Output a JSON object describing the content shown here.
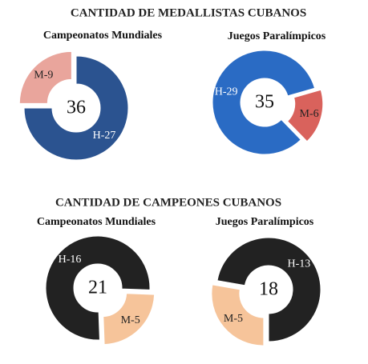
{
  "headings": [
    "CANTIDAD DE MEDALLISTAS CUBANOS",
    "CANTIDAD DE CAMPEONES CUBANOS"
  ],
  "chart_data": [
    {
      "type": "donut",
      "title": "Campeonatos Mundiales",
      "total": 36,
      "values": [
        27,
        9
      ],
      "value_labels": [
        "H-27",
        "M-9"
      ],
      "colors": [
        "#2b5390",
        "#e9a59c"
      ],
      "exploded": [
        false,
        true
      ]
    },
    {
      "type": "donut",
      "title": "Juegos Paralímpicos",
      "total": 35,
      "values": [
        29,
        6
      ],
      "value_labels": [
        "H-29",
        "M-6"
      ],
      "colors": [
        "#2a6bc4",
        "#d9625c"
      ],
      "exploded": [
        false,
        true
      ]
    },
    {
      "type": "donut",
      "title": "Campeonatos Mundiales",
      "total": 21,
      "values": [
        16,
        5
      ],
      "value_labels": [
        "H-16",
        "M-5"
      ],
      "colors": [
        "#222222",
        "#f6c49a"
      ],
      "exploded": [
        false,
        true
      ]
    },
    {
      "type": "donut",
      "title": "Juegos Paralímpicos",
      "total": 18,
      "values": [
        13,
        5
      ],
      "value_labels": [
        "H-13",
        "M-5"
      ],
      "colors": [
        "#222222",
        "#f6c49a"
      ],
      "exploded": [
        false,
        true
      ]
    }
  ]
}
